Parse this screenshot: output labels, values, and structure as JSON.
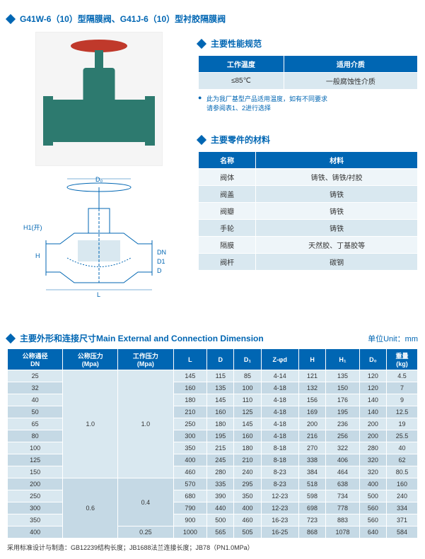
{
  "title": "G41W-6（10）型隔膜阀、G41J-6（10）型衬胶隔膜阀",
  "spec": {
    "heading": "主要性能规范",
    "headers": [
      "工作温度",
      "适用介质"
    ],
    "row": [
      "≤85℃",
      "一般腐蚀性介质"
    ],
    "note": "此为我厂基型产品适用温度，如有不同要求\n请参阅表1、2进行选择"
  },
  "materials": {
    "heading": "主要零件的材料",
    "headers": [
      "名称",
      "材料"
    ],
    "rows": [
      [
        "阀体",
        "铸铁、铸铁/衬胶"
      ],
      [
        "阀盖",
        "铸铁"
      ],
      [
        "阀瓣",
        "铸铁"
      ],
      [
        "手轮",
        "铸铁"
      ],
      [
        "隔膜",
        "天然胶、丁基胶等"
      ],
      [
        "阀杆",
        "碳钢"
      ]
    ]
  },
  "dimensions": {
    "heading": "主要外形和连接尺寸Main External and Connection Dimension",
    "unit": "单位Unit：mm",
    "headers": [
      "公称通径\nDN",
      "公称压力\n(Mpa)",
      "工作压力\n(Mpa)",
      "L",
      "D",
      "D₁",
      "Z-φd",
      "H",
      "H₁",
      "D₀",
      "重量\n(kg)"
    ],
    "rows": [
      [
        "25",
        "1.0",
        "1.0",
        "145",
        "115",
        "85",
        "4-14",
        "121",
        "135",
        "120",
        "4.5"
      ],
      [
        "32",
        "1.0",
        "1.0",
        "160",
        "135",
        "100",
        "4-18",
        "132",
        "150",
        "120",
        "7"
      ],
      [
        "40",
        "1.0",
        "1.0",
        "180",
        "145",
        "110",
        "4-18",
        "156",
        "176",
        "140",
        "9"
      ],
      [
        "50",
        "1.0",
        "1.0",
        "210",
        "160",
        "125",
        "4-18",
        "169",
        "195",
        "140",
        "12.5"
      ],
      [
        "65",
        "1.0",
        "1.0",
        "250",
        "180",
        "145",
        "4-18",
        "200",
        "236",
        "200",
        "19"
      ],
      [
        "80",
        "1.0",
        "1.0",
        "300",
        "195",
        "160",
        "4-18",
        "216",
        "256",
        "200",
        "25.5"
      ],
      [
        "100",
        "1.0",
        "1.0",
        "350",
        "215",
        "180",
        "8-18",
        "270",
        "322",
        "280",
        "40"
      ],
      [
        "125",
        "1.0",
        "1.0",
        "400",
        "245",
        "210",
        "8-18",
        "338",
        "406",
        "320",
        "62"
      ],
      [
        "150",
        "1.0",
        "1.0",
        "460",
        "280",
        "240",
        "8-23",
        "384",
        "464",
        "320",
        "80.5"
      ],
      [
        "200",
        "0.6",
        "0.4",
        "570",
        "335",
        "295",
        "8-23",
        "518",
        "638",
        "400",
        "160"
      ],
      [
        "250",
        "0.6",
        "0.4",
        "680",
        "390",
        "350",
        "12-23",
        "598",
        "734",
        "500",
        "240"
      ],
      [
        "300",
        "0.6",
        "0.4",
        "790",
        "440",
        "400",
        "12-23",
        "698",
        "778",
        "560",
        "334"
      ],
      [
        "350",
        "0.6",
        "0.4",
        "900",
        "500",
        "460",
        "16-23",
        "723",
        "883",
        "560",
        "371"
      ],
      [
        "400",
        "0.6",
        "0.25",
        "1000",
        "565",
        "505",
        "16-25",
        "868",
        "1078",
        "640",
        "584"
      ]
    ],
    "merges": {
      "pn": [
        {
          "start": 0,
          "span": 9,
          "val": "1.0"
        },
        {
          "start": 9,
          "span": 5,
          "val": "0.6"
        }
      ],
      "wp": [
        {
          "start": 0,
          "span": 9,
          "val": "1.0"
        },
        {
          "start": 9,
          "span": 4,
          "val": "0.4"
        },
        {
          "start": 13,
          "span": 1,
          "val": "0.25"
        }
      ]
    }
  },
  "footnote": "采用标准设计与制造：GB12239结构长度；JB1688法兰连接长度；JB78（PN1.0MPa）",
  "diagram_labels": {
    "D0": "D₀",
    "H1": "H1(开)",
    "H": "H",
    "DN": "DN",
    "D1": "D1",
    "D": "D",
    "L": "L"
  },
  "colors": {
    "primary": "#0066b3",
    "rowA": "#d9e8f0",
    "rowB": "#c5d9e5",
    "valve": "#2d7a6f",
    "wheel": "#c0392b"
  }
}
